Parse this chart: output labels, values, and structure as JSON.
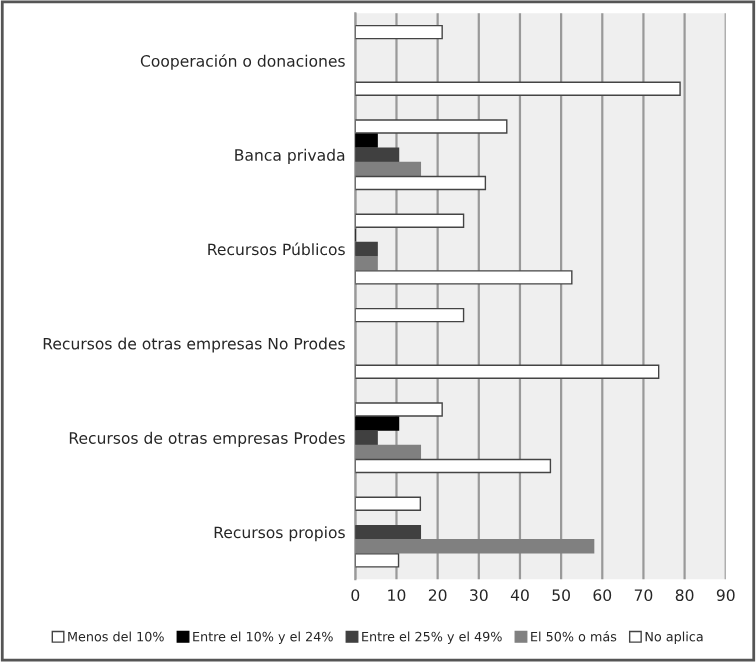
{
  "chart_data": {
    "type": "bar",
    "orientation": "horizontal",
    "categories": [
      "Cooperación o donaciones",
      "Banca privada",
      "Recursos Públicos",
      "Recursos de otras empresas No Prodes",
      "Recursos de otras empresas Prodes",
      "Recursos propios"
    ],
    "series": [
      {
        "name": "Menos del 10%",
        "color": "#ffffff",
        "values": [
          21.1,
          36.8,
          26.3,
          26.3,
          21.1,
          15.8
        ]
      },
      {
        "name": "Entre el 10% y el 24%",
        "color": "#000000",
        "values": [
          null,
          5.3,
          0,
          null,
          10.5,
          null
        ]
      },
      {
        "name": "Entre el 25% y el 49%",
        "color": "#404040",
        "values": [
          null,
          10.5,
          5.3,
          null,
          5.3,
          15.8
        ]
      },
      {
        "name": "El 50% o más",
        "color": "#808080",
        "values": [
          null,
          15.8,
          5.3,
          null,
          15.8,
          57.9
        ]
      },
      {
        "name": "No aplica",
        "color": "#ffffff",
        "values": [
          78.9,
          31.6,
          52.6,
          73.7,
          47.4,
          10.5
        ]
      }
    ],
    "xlim": [
      0,
      90
    ],
    "xticks": [
      0,
      10,
      20,
      30,
      40,
      50,
      60,
      70,
      80,
      90
    ],
    "grid": "x",
    "legend": "bottom"
  }
}
